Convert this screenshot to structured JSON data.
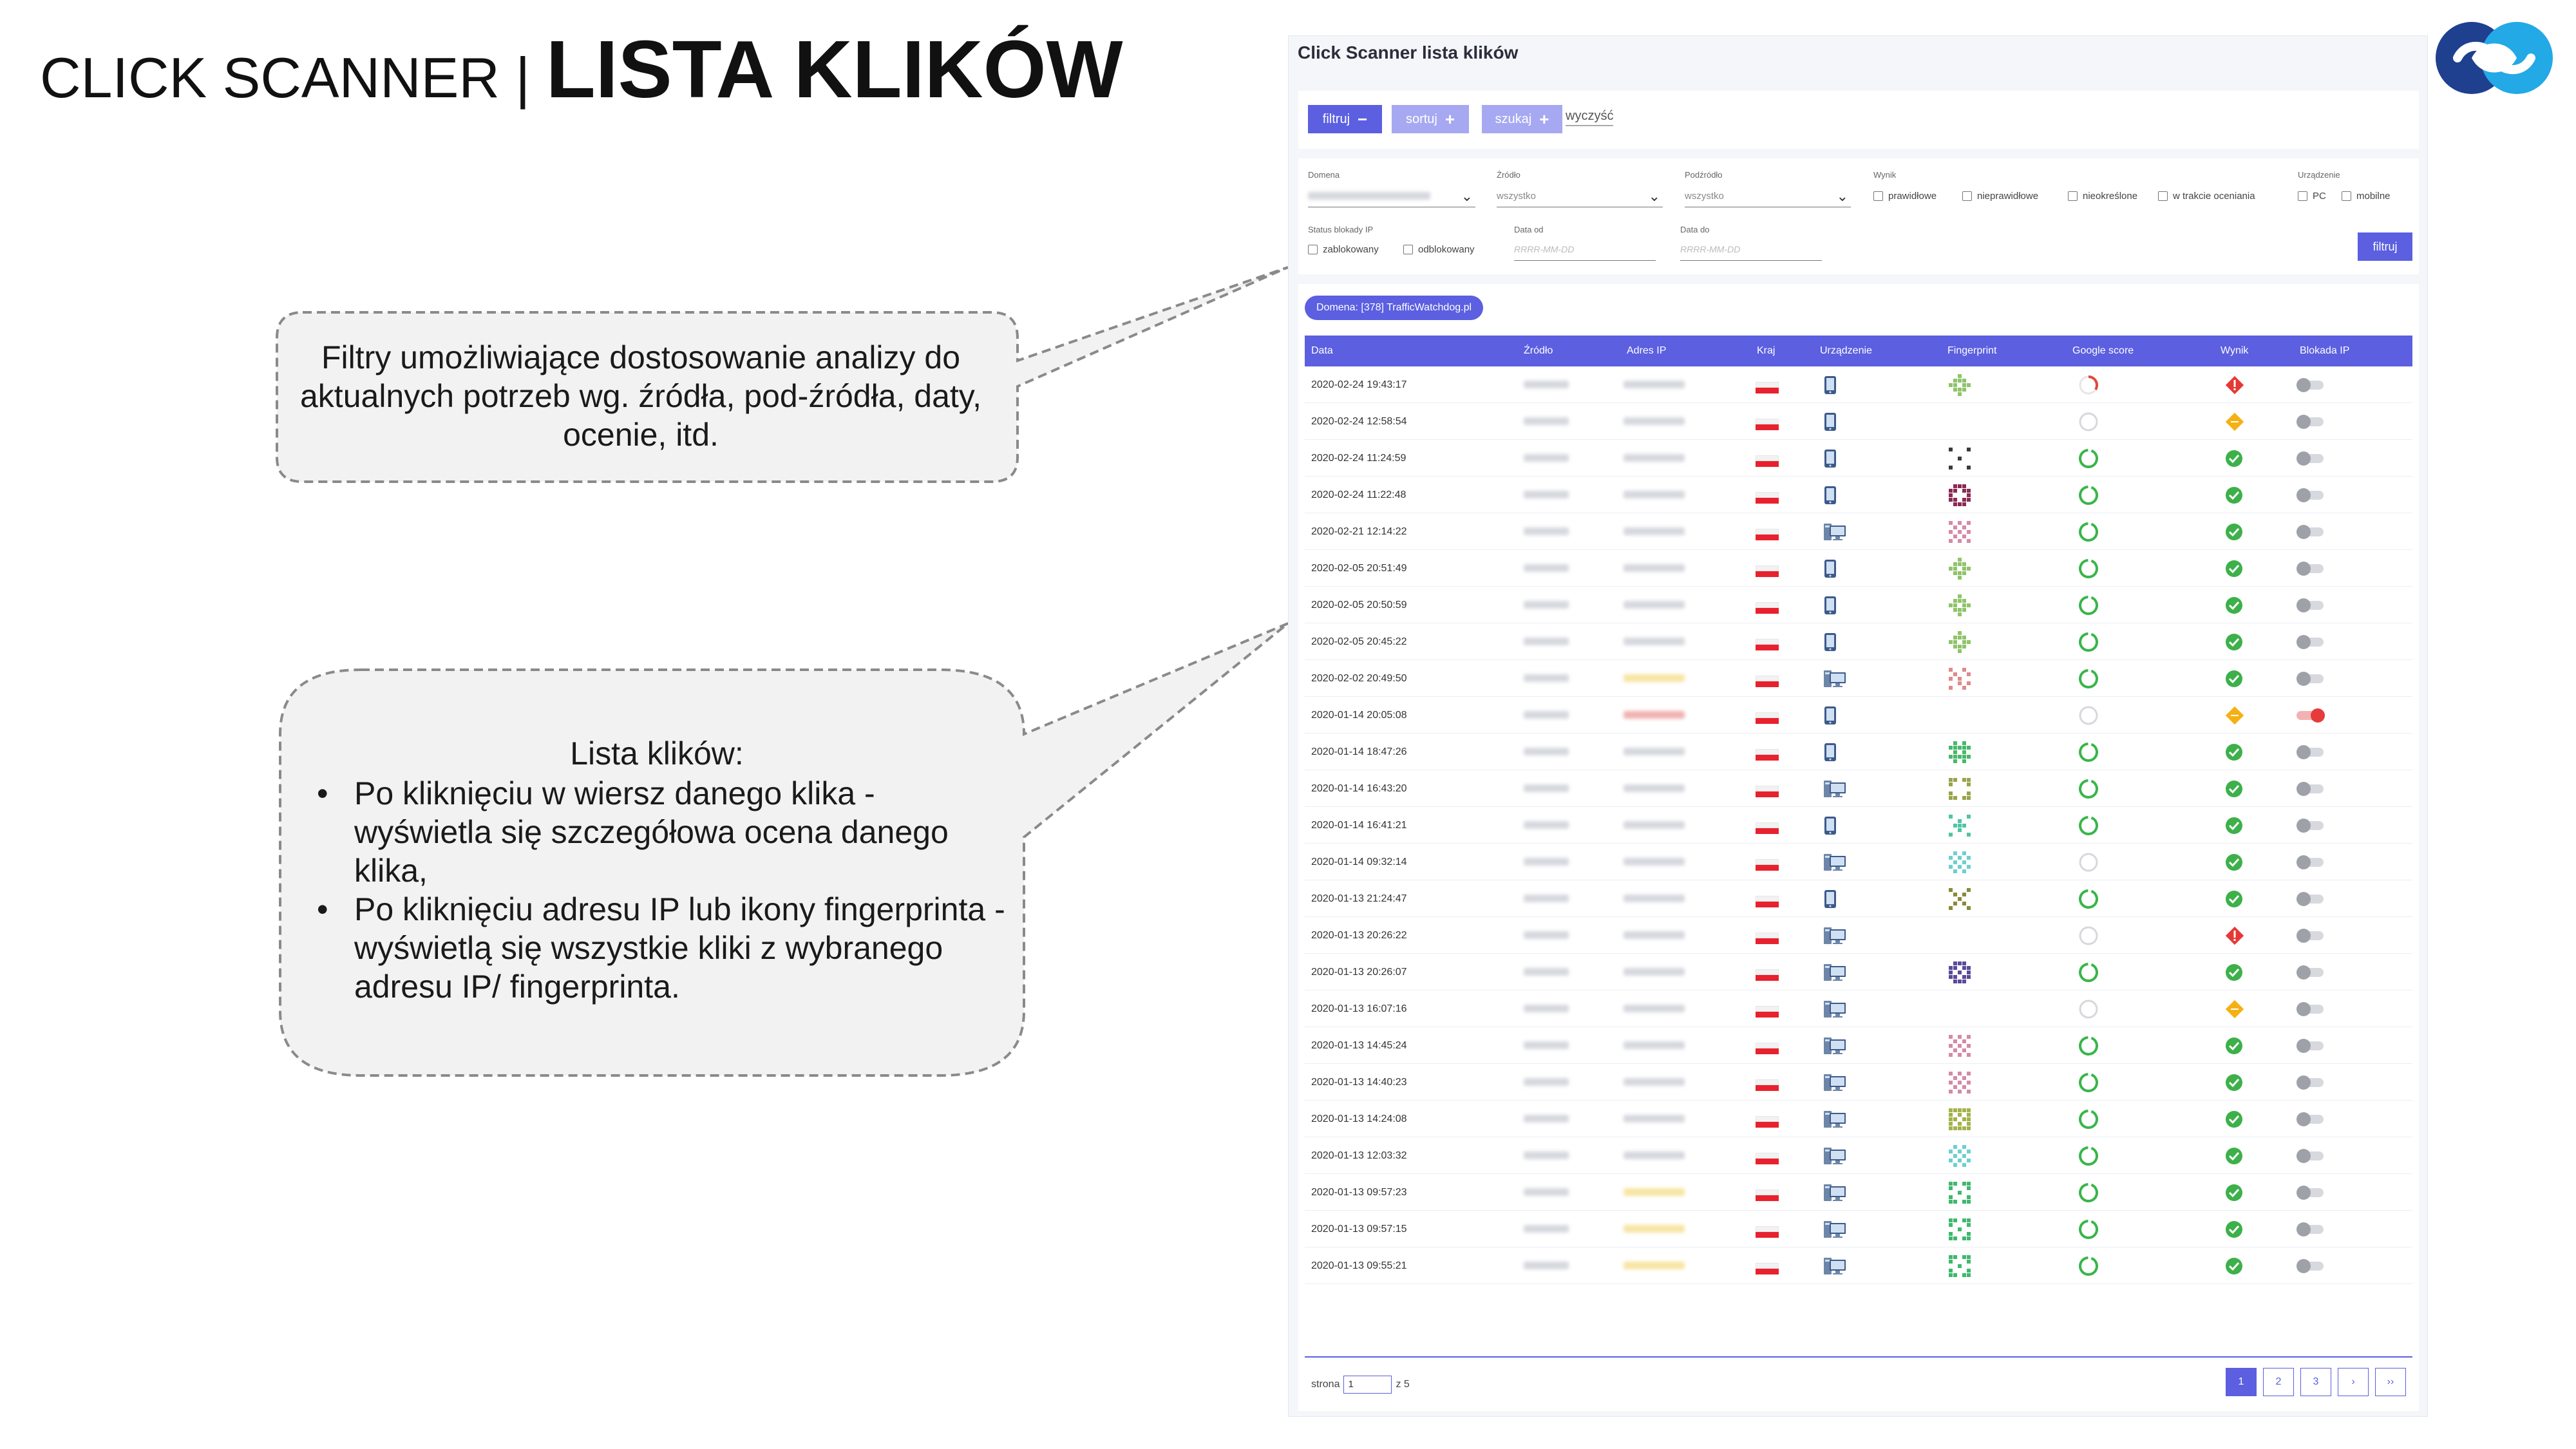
{
  "slide": {
    "title_light": "CLICK SCANNER | ",
    "title_bold": "LISTA KLIKÓW",
    "callout1": "Filtry umożliwiające dostosowanie analizy do aktualnych potrzeb wg. źródła, pod-źródła, daty, ocenie, itd.",
    "callout2_head": "Lista klików:",
    "callout2_items": [
      "Po kliknięciu w wiersz danego klika - wyświetla się szczegółowa ocena danego klika,",
      "Po kliknięciu adresu IP lub ikony fingerprinta - wyświetlą się wszystkie kliki z wybranego adresu IP/ fingerprinta."
    ],
    "bullet": "•"
  },
  "app": {
    "title": "Click Scanner lista klików",
    "toolbar": {
      "filter_label": "filtruj",
      "filter_op": "−",
      "sort_label": "sortuj",
      "sort_op": "+",
      "search_label": "szukaj",
      "search_op": "+",
      "clear_label": "wyczyść"
    },
    "filters": {
      "domain_label": "Domena",
      "source_label": "Źródło",
      "source_value": "wszystko",
      "subsource_label": "Podźródło",
      "subsource_value": "wszystko",
      "result_label": "Wynik",
      "result_options": [
        "prawidłowe",
        "nieprawidłowe",
        "nieokreślone",
        "w trakcie oceniania"
      ],
      "device_label": "Urządzenie",
      "device_options": [
        "PC",
        "mobilne"
      ],
      "ipblock_label": "Status blokady IP",
      "ipblock_options": [
        "zablokowany",
        "odblokowany"
      ],
      "date_from_label": "Data od",
      "date_to_label": "Data do",
      "date_placeholder": "RRRR-MM-DD",
      "submit_label": "filtruj"
    },
    "domain_pill": "Domena: [378] TrafficWatchdog.pl",
    "columns": [
      "Data",
      "Źródło",
      "Adres IP",
      "Kraj",
      "Urządzenie",
      "Fingerprint",
      "Google score",
      "Wynik",
      "Blokada IP"
    ],
    "rows": [
      {
        "date": "2020-02-24 19:43:17",
        "ip": "g",
        "device": "mobile",
        "fp": "green-diamond",
        "gs": "partial",
        "result": "invalid",
        "block": false
      },
      {
        "date": "2020-02-24 12:58:54",
        "ip": "g",
        "device": "mobile",
        "fp": "none",
        "gs": "empty",
        "result": "undetermined",
        "block": false
      },
      {
        "date": "2020-02-24 11:24:59",
        "ip": "g",
        "device": "mobile",
        "fp": "dark-center",
        "gs": "full",
        "result": "valid",
        "block": false
      },
      {
        "date": "2020-02-24 11:22:48",
        "ip": "g",
        "device": "mobile",
        "fp": "maroon-ring",
        "gs": "full",
        "result": "valid",
        "block": false
      },
      {
        "date": "2020-02-21 12:14:22",
        "ip": "g",
        "device": "desktop",
        "fp": "pink-scatter",
        "gs": "full",
        "result": "valid",
        "block": false
      },
      {
        "date": "2020-02-05 20:51:49",
        "ip": "g",
        "device": "mobile",
        "fp": "green-diamond",
        "gs": "full",
        "result": "valid",
        "block": false
      },
      {
        "date": "2020-02-05 20:50:59",
        "ip": "g",
        "device": "mobile",
        "fp": "green-diamond",
        "gs": "full",
        "result": "valid",
        "block": false
      },
      {
        "date": "2020-02-05 20:45:22",
        "ip": "g",
        "device": "mobile",
        "fp": "green-diamond",
        "gs": "full",
        "result": "valid",
        "block": false
      },
      {
        "date": "2020-02-02 20:49:50",
        "ip": "y",
        "device": "desktop",
        "fp": "red-scatter",
        "gs": "full",
        "result": "valid",
        "block": false
      },
      {
        "date": "2020-01-14 20:05:08",
        "ip": "r",
        "device": "mobile",
        "fp": "none",
        "gs": "empty",
        "result": "undetermined",
        "block": true
      },
      {
        "date": "2020-01-14 18:47:26",
        "ip": "g",
        "device": "mobile",
        "fp": "green-dots",
        "gs": "full",
        "result": "valid",
        "block": false
      },
      {
        "date": "2020-01-14 16:43:20",
        "ip": "g",
        "device": "desktop",
        "fp": "olive-frame",
        "gs": "full",
        "result": "valid",
        "block": false
      },
      {
        "date": "2020-01-14 16:41:21",
        "ip": "g",
        "device": "mobile",
        "fp": "teal-cross",
        "gs": "full",
        "result": "valid",
        "block": false
      },
      {
        "date": "2020-01-14 09:32:14",
        "ip": "g",
        "device": "desktop",
        "fp": "teal-dots",
        "gs": "empty",
        "result": "valid",
        "block": false
      },
      {
        "date": "2020-01-13 21:24:47",
        "ip": "g",
        "device": "mobile",
        "fp": "olive-x",
        "gs": "full",
        "result": "valid",
        "block": false
      },
      {
        "date": "2020-01-13 20:26:22",
        "ip": "g",
        "device": "desktop",
        "fp": "none",
        "gs": "empty",
        "result": "invalid",
        "block": false
      },
      {
        "date": "2020-01-13 20:26:07",
        "ip": "g",
        "device": "desktop",
        "fp": "purple-grid",
        "gs": "full",
        "result": "valid",
        "block": false
      },
      {
        "date": "2020-01-13 16:07:16",
        "ip": "g",
        "device": "desktop",
        "fp": "none",
        "gs": "empty",
        "result": "undetermined",
        "block": false
      },
      {
        "date": "2020-01-13 14:45:24",
        "ip": "g",
        "device": "desktop",
        "fp": "pink-scatter",
        "gs": "full",
        "result": "valid",
        "block": false
      },
      {
        "date": "2020-01-13 14:40:23",
        "ip": "g",
        "device": "desktop",
        "fp": "pink-scatter",
        "gs": "full",
        "result": "valid",
        "block": false
      },
      {
        "date": "2020-01-13 14:24:08",
        "ip": "g",
        "device": "desktop",
        "fp": "olive-box",
        "gs": "full",
        "result": "valid",
        "block": false
      },
      {
        "date": "2020-01-13 12:03:32",
        "ip": "g",
        "device": "desktop",
        "fp": "teal-dots",
        "gs": "full",
        "result": "valid",
        "block": false
      },
      {
        "date": "2020-01-13 09:57:23",
        "ip": "y",
        "device": "desktop",
        "fp": "green-box",
        "gs": "full",
        "result": "valid",
        "block": false
      },
      {
        "date": "2020-01-13 09:57:15",
        "ip": "y",
        "device": "desktop",
        "fp": "green-box",
        "gs": "full",
        "result": "valid",
        "block": false
      },
      {
        "date": "2020-01-13 09:55:21",
        "ip": "y",
        "device": "desktop",
        "fp": "green-box",
        "gs": "full",
        "result": "valid",
        "block": false
      }
    ],
    "pager": {
      "label": "strona",
      "current": "1",
      "of": "z 5",
      "pages": [
        "1",
        "2",
        "3"
      ],
      "next": "›",
      "last": "››"
    }
  }
}
